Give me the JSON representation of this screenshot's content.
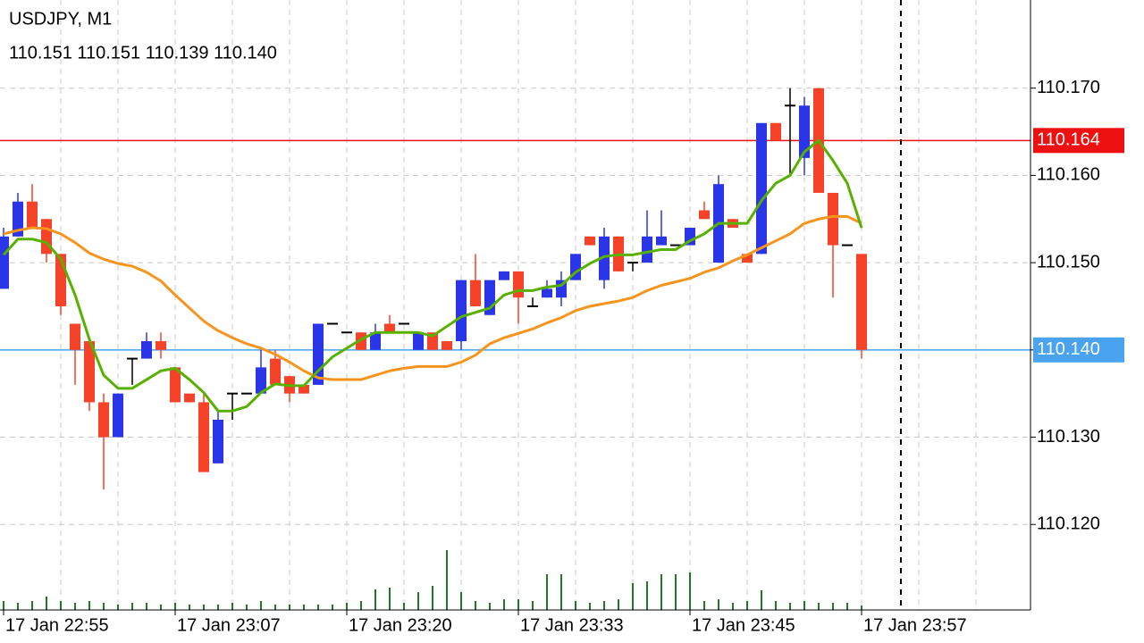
{
  "chart_data": {
    "type": "candlestick",
    "title": "USDJPY, M1",
    "subtitle": "110.151 110.151 110.139 110.140",
    "categories": [
      "17 Jan 22:55",
      null,
      null,
      null,
      null,
      null,
      null,
      null,
      null,
      null,
      null,
      null,
      "17 Jan 23:07",
      null,
      null,
      null,
      null,
      null,
      null,
      null,
      null,
      null,
      null,
      null,
      "17 Jan 23:20",
      null,
      null,
      null,
      null,
      null,
      null,
      null,
      null,
      null,
      null,
      null,
      "17 Jan 23:33",
      null,
      null,
      null,
      null,
      null,
      null,
      null,
      null,
      null,
      null,
      null,
      "17 Jan 23:45",
      null,
      null,
      null,
      null,
      null,
      null,
      null,
      null,
      null,
      null,
      null,
      "17 Jan 23:57"
    ],
    "open": [
      110.147,
      110.153,
      110.157,
      110.155,
      110.151,
      110.143,
      110.141,
      110.134,
      110.13,
      110.139,
      110.139,
      110.141,
      110.138,
      110.135,
      110.134,
      110.127,
      110.135,
      110.135,
      110.135,
      110.139,
      110.137,
      110.136,
      110.136,
      110.143,
      110.142,
      110.142,
      110.14,
      110.143,
      110.143,
      110.14,
      110.142,
      110.141,
      110.141,
      110.148,
      110.144,
      110.148,
      110.149,
      110.145,
      110.146,
      110.146,
      110.148,
      110.153,
      110.148,
      110.153,
      110.15,
      110.15,
      110.152,
      110.152,
      110.152,
      110.156,
      110.15,
      110.155,
      110.151,
      110.151,
      110.166,
      110.168,
      110.162,
      110.17,
      110.158,
      110.152,
      110.151
    ],
    "high": [
      110.154,
      110.158,
      110.159,
      110.155,
      110.151,
      110.143,
      110.141,
      110.135,
      110.135,
      110.139,
      110.142,
      110.142,
      110.138,
      110.135,
      110.135,
      110.133,
      110.135,
      110.135,
      110.14,
      110.14,
      110.137,
      110.136,
      110.143,
      110.143,
      110.142,
      110.142,
      110.143,
      110.144,
      110.143,
      110.142,
      110.142,
      110.141,
      110.148,
      110.151,
      110.148,
      110.149,
      110.149,
      110.146,
      110.148,
      110.149,
      110.151,
      110.153,
      110.154,
      110.153,
      110.15,
      110.156,
      110.156,
      110.152,
      110.154,
      110.157,
      110.16,
      110.155,
      110.151,
      110.166,
      110.166,
      110.17,
      110.169,
      110.17,
      110.158,
      110.152,
      110.151
    ],
    "low": [
      110.147,
      110.153,
      110.154,
      110.15,
      110.144,
      110.136,
      110.133,
      110.124,
      110.13,
      110.136,
      110.139,
      110.139,
      110.134,
      110.134,
      110.126,
      110.127,
      110.132,
      110.135,
      110.135,
      110.136,
      110.134,
      110.135,
      110.136,
      110.143,
      110.142,
      110.14,
      110.14,
      110.142,
      110.143,
      110.14,
      110.14,
      110.14,
      110.14,
      110.145,
      110.144,
      110.148,
      110.143,
      110.145,
      110.146,
      110.145,
      110.148,
      110.152,
      110.147,
      110.149,
      110.149,
      110.15,
      110.152,
      110.152,
      110.152,
      110.155,
      110.15,
      110.154,
      110.15,
      110.151,
      110.164,
      110.16,
      110.16,
      110.158,
      110.146,
      110.152,
      110.139
    ],
    "close": [
      110.153,
      110.157,
      110.154,
      110.151,
      110.145,
      110.14,
      110.134,
      110.13,
      110.135,
      110.139,
      110.141,
      110.14,
      110.134,
      110.134,
      110.126,
      110.132,
      110.135,
      110.135,
      110.138,
      110.136,
      110.135,
      110.135,
      110.143,
      110.143,
      110.142,
      110.14,
      110.142,
      110.142,
      110.143,
      110.142,
      110.14,
      110.14,
      110.148,
      110.145,
      110.148,
      110.149,
      110.146,
      110.145,
      110.147,
      110.148,
      110.151,
      110.152,
      110.153,
      110.149,
      110.15,
      110.153,
      110.153,
      110.152,
      110.154,
      110.155,
      110.159,
      110.154,
      110.15,
      110.166,
      110.164,
      110.168,
      110.168,
      110.158,
      110.152,
      110.152,
      110.14
    ],
    "up_color": "#2b35e8",
    "down_color": "#f5432a",
    "doji_color": "#000000",
    "moving_averages": [
      {
        "color": "#f7941d",
        "values": [
          110.1533,
          110.1537,
          110.154,
          110.1539,
          110.1533,
          110.1523,
          110.1511,
          110.1504,
          110.1499,
          110.1496,
          110.1489,
          110.1479,
          110.1463,
          110.1448,
          110.1433,
          110.1422,
          110.1414,
          110.1407,
          110.1402,
          110.1395,
          110.1386,
          110.1376,
          110.1368,
          110.1366,
          110.1366,
          110.1366,
          110.1371,
          110.1376,
          110.1379,
          110.1381,
          110.1381,
          110.1381,
          110.1386,
          110.1394,
          110.1407,
          110.1414,
          110.1419,
          110.1424,
          110.1431,
          110.1437,
          110.1445,
          110.145,
          110.1453,
          110.1456,
          110.146,
          110.1468,
          110.1474,
          110.1478,
          110.1482,
          110.1489,
          110.1494,
          110.1502,
          110.1509,
          110.1517,
          110.1525,
          110.1533,
          110.1545,
          110.155,
          110.1553,
          110.1553,
          110.1545
        ]
      },
      {
        "color": "#58b000",
        "values": [
          110.1509,
          110.1527,
          110.1527,
          110.1523,
          110.1504,
          110.1463,
          110.1412,
          110.1371,
          110.1356,
          110.1356,
          110.1366,
          110.1376,
          110.1379,
          110.1366,
          110.1351,
          110.133,
          110.133,
          110.1335,
          110.1351,
          110.1361,
          110.1359,
          110.1359,
          110.1376,
          110.1392,
          110.1402,
          110.1412,
          110.142,
          110.142,
          110.142,
          110.142,
          110.1416,
          110.1427,
          110.1438,
          110.1443,
          110.1448,
          110.1463,
          110.1468,
          110.1468,
          110.1472,
          110.1474,
          110.1489,
          110.1499,
          110.1507,
          110.1509,
          110.1509,
          110.1512,
          110.1515,
          110.1515,
          110.1525,
          110.1533,
          110.1545,
          110.1545,
          110.1545,
          110.1571,
          110.1591,
          110.16,
          110.1627,
          110.164,
          110.1617,
          110.1591,
          110.154
        ]
      }
    ],
    "volume": {
      "color": "#1f7a1f",
      "ylim": [
        0,
        70
      ],
      "values": [
        10,
        8,
        10,
        15,
        10,
        8,
        10,
        8,
        6,
        8,
        8,
        6,
        8,
        6,
        6,
        6,
        8,
        6,
        10,
        6,
        6,
        6,
        6,
        6,
        8,
        10,
        23,
        25,
        8,
        20,
        27,
        67,
        20,
        10,
        8,
        12,
        12,
        10,
        40,
        40,
        10,
        8,
        10,
        12,
        30,
        32,
        40,
        40,
        42,
        10,
        12,
        8,
        10,
        22,
        10,
        8,
        10,
        8,
        8,
        8,
        5
      ]
    },
    "ylim": [
      110.1102,
      110.1801
    ],
    "yticks": [
      {
        "value": 110.12,
        "label": "110.120"
      },
      {
        "value": 110.13,
        "label": "110.130"
      },
      {
        "value": 110.14,
        "label": "110.140"
      },
      {
        "value": 110.15,
        "label": "110.150"
      },
      {
        "value": 110.16,
        "label": "110.160"
      },
      {
        "value": 110.17,
        "label": "110.170"
      }
    ],
    "price_lines": [
      {
        "value": 110.164,
        "label": "110.164",
        "color": "#ee1111"
      },
      {
        "value": 110.14,
        "label": "110.140",
        "color": "#4aa3ee"
      }
    ],
    "grid": true
  }
}
